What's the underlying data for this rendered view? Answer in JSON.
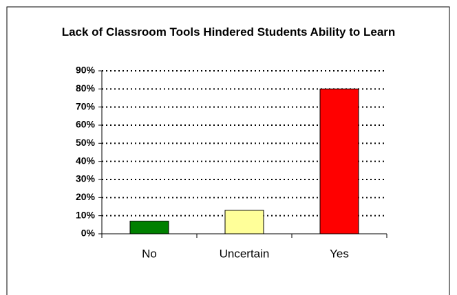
{
  "chart_data": {
    "type": "bar",
    "title": "Lack of Classroom Tools Hindered Students Ability to Learn",
    "categories": [
      "No",
      "Uncertain",
      "Yes"
    ],
    "values": [
      7,
      13,
      80
    ],
    "colors": [
      "#008000",
      "#ffff99",
      "#ff0000"
    ],
    "ylim": [
      0,
      90
    ],
    "yticks": [
      {
        "value": 0,
        "label": "0%"
      },
      {
        "value": 10,
        "label": "10%"
      },
      {
        "value": 20,
        "label": "20%"
      },
      {
        "value": 30,
        "label": "30%"
      },
      {
        "value": 40,
        "label": "40%"
      },
      {
        "value": 50,
        "label": "50%"
      },
      {
        "value": 60,
        "label": "60%"
      },
      {
        "value": 70,
        "label": "70%"
      },
      {
        "value": 80,
        "label": "80%"
      },
      {
        "value": 90,
        "label": "90%"
      }
    ],
    "grid": true
  }
}
